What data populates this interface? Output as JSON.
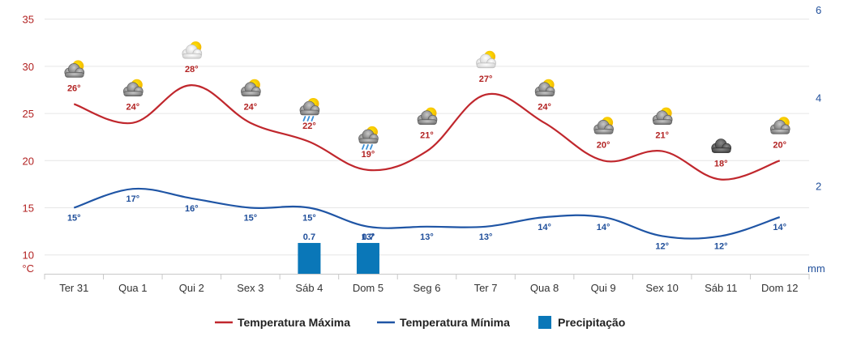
{
  "chart_data": {
    "type": "line",
    "categories": [
      "Ter 31",
      "Qua 1",
      "Qui 2",
      "Sex 3",
      "Sáb 4",
      "Dom 5",
      "Seg 6",
      "Ter 7",
      "Qua 8",
      "Qui 9",
      "Sex 10",
      "Sáb 11",
      "Dom 12"
    ],
    "series": [
      {
        "name": "Temperatura Máxima",
        "type": "line",
        "color": "#c0272d",
        "values": [
          26,
          24,
          28,
          24,
          22,
          19,
          21,
          27,
          24,
          20,
          21,
          18,
          20
        ]
      },
      {
        "name": "Temperatura Mínima",
        "type": "line",
        "color": "#1f55a5",
        "values": [
          15,
          17,
          16,
          15,
          15,
          13,
          13,
          13,
          14,
          14,
          12,
          12,
          14
        ]
      },
      {
        "name": "Precipitação",
        "type": "bar",
        "color": "#0a77b8",
        "values": [
          0,
          0,
          0,
          0,
          0.7,
          0.7,
          0,
          0,
          0,
          0,
          0,
          0,
          0
        ],
        "labels": [
          "",
          "",
          "",
          "",
          "0.7",
          "0.7",
          "",
          "",
          "",
          "",
          "",
          "",
          ""
        ]
      }
    ],
    "max_labels": [
      "26°",
      "24°",
      "28°",
      "24°",
      "22°",
      "19°",
      "21°",
      "27°",
      "24°",
      "20°",
      "21°",
      "18°",
      "20°"
    ],
    "min_labels": [
      "15°",
      "17°",
      "16°",
      "15°",
      "15°",
      "13°",
      "13°",
      "13°",
      "14°",
      "14°",
      "12°",
      "12°",
      "14°"
    ],
    "weather_icons": [
      "sun-cloud-icon",
      "sun-cloud-icon",
      "sun-cloud-light-icon",
      "sun-cloud-icon",
      "sun-cloud-rain-icon",
      "sun-cloud-rain-icon",
      "sun-cloud-icon",
      "sun-cloud-light-icon",
      "sun-cloud-icon",
      "sun-cloud-icon",
      "sun-cloud-icon",
      "dark-cloud-icon",
      "sun-cloud-icon"
    ],
    "y_left": {
      "unit": "°C",
      "ticks": [
        "35",
        "30",
        "25",
        "20",
        "15",
        "10"
      ],
      "ylim": [
        8,
        36
      ]
    },
    "y_right": {
      "unit": "mm",
      "ticks": [
        "6",
        "4",
        "2"
      ],
      "ylim": [
        0,
        6
      ]
    },
    "grid": true,
    "legend_position": "bottom-center"
  }
}
